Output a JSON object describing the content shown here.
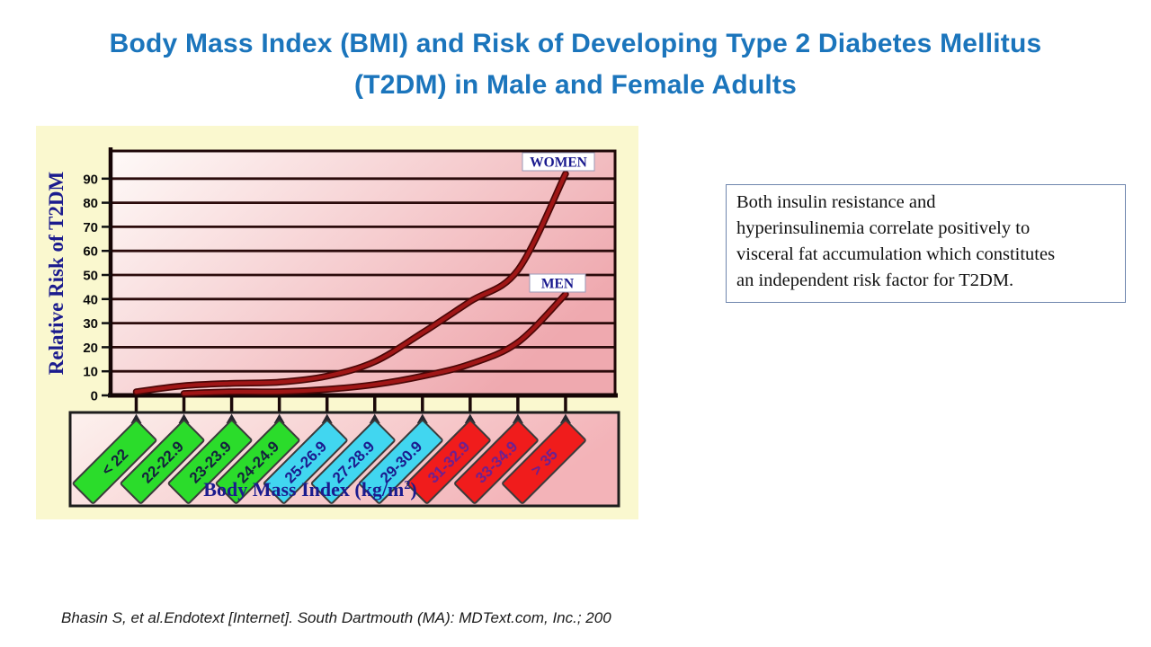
{
  "slide": {
    "title_line1": "Body Mass Index (BMI) and Risk of Developing Type 2 Diabetes Mellitus",
    "title_line2": "(T2DM) in Male and Female Adults",
    "citation": "Bhasin S, et al.Endotext [Internet]. South Dartmouth (MA): MDText.com, Inc.; 200",
    "note_box": {
      "lines": [
        "Both insulin resistance and",
        "hyperinsulinemia correlate positively to",
        "visceral fat accumulation which constitutes",
        "an independent risk factor for T2DM."
      ]
    },
    "colors": {
      "title": "#1B75BC",
      "axis_text": "#1b1b8e",
      "figure_background": "#FAF8CF"
    }
  },
  "chart_data": {
    "type": "line",
    "title": "",
    "categories": [
      "< 22",
      "22-22.9",
      "23-23.9",
      "24-24.9",
      "25-26.9",
      "27-28.9",
      "29-30.9",
      "31-32.9",
      "33-34.9",
      "> 35"
    ],
    "series": [
      {
        "name": "WOMEN",
        "values": [
          1.5,
          4,
          5,
          5.5,
          8,
          14,
          26,
          39,
          52,
          92
        ]
      },
      {
        "name": "MEN",
        "values": [
          null,
          0.8,
          1.5,
          1.5,
          2.5,
          4.5,
          8,
          13,
          22,
          42
        ]
      }
    ],
    "xlabel": "Body Mass Index (kg/m²)",
    "xlabel_parts": {
      "prefix": "Body Mass Index (kg/m",
      "sup": "2",
      "suffix": ")"
    },
    "ylabel": "Relative Risk of T2DM",
    "yticks": [
      0,
      10,
      20,
      30,
      40,
      50,
      60,
      70,
      80,
      90
    ],
    "ylim": [
      0,
      100
    ],
    "grid": true,
    "legend_position": "on-chart",
    "styles": {
      "curve_color": "#A01616",
      "curve_edge": "#4A0707",
      "gridline_color": "#2B0B0B",
      "category_tags": [
        {
          "fill": "#2BDC2B",
          "text": "#14213d"
        },
        {
          "fill": "#2BDC2B",
          "text": "#14213d"
        },
        {
          "fill": "#2BDC2B",
          "text": "#14213d"
        },
        {
          "fill": "#2BDC2B",
          "text": "#14213d"
        },
        {
          "fill": "#41D6F0",
          "text": "#1b1b8e"
        },
        {
          "fill": "#41D6F0",
          "text": "#1b1b8e"
        },
        {
          "fill": "#41D6F0",
          "text": "#1b1b8e"
        },
        {
          "fill": "#F01C1C",
          "text": "#6e2090"
        },
        {
          "fill": "#F01C1C",
          "text": "#6e2090"
        },
        {
          "fill": "#F01C1C",
          "text": "#6e2090"
        }
      ]
    }
  }
}
